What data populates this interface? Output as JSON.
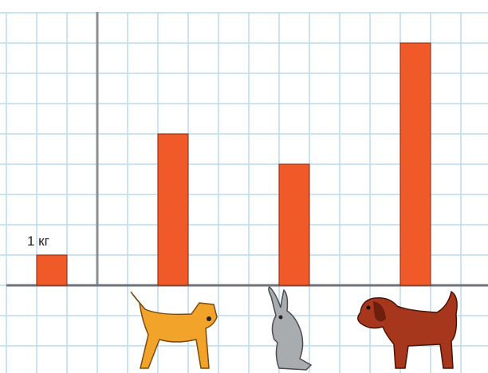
{
  "chart_data": {
    "type": "bar",
    "categories": [
      null,
      null,
      null,
      null
    ],
    "values": [
      1,
      5,
      4,
      8
    ],
    "value_labels": [
      "1 кг",
      null,
      null,
      null
    ],
    "color": "#f05a28"
  }
}
